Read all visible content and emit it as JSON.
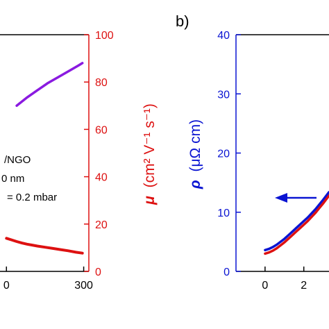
{
  "panels": {
    "left": {
      "annotation_lines": [
        "/NGO",
        "0 nm",
        "= 0.2 mbar"
      ]
    },
    "right": {
      "panel_letter": "b)",
      "arrow_direction": "left"
    }
  },
  "colors": {
    "mobility": "#dd1111",
    "purple": "#8a1ae0",
    "blue": "#0a14d2",
    "red": "#dd1111",
    "axis": "#000000"
  },
  "chart_data": [
    {
      "type": "line",
      "panel": "a",
      "title": "",
      "xlabel": "",
      "x_tick_labels": [
        "0",
        "300"
      ],
      "xlim": [
        -25,
        320
      ],
      "left_axis": {
        "ticks_visible": false
      },
      "right_axis": {
        "label_symbol": "μ",
        "label_units": "(cm² V⁻¹ s⁻¹)",
        "ylim": [
          0,
          100
        ],
        "ticks": [
          0,
          20,
          40,
          60,
          80,
          100
        ],
        "tick_labels": [
          "0",
          "20",
          "40",
          "60",
          "80",
          "100"
        ],
        "color": "#dd1111"
      },
      "series": [
        {
          "color": "#8a1ae0",
          "axis": "left (scale not visible)",
          "x": [
            40,
            80,
            120,
            160,
            200,
            240,
            280,
            295
          ],
          "y_fraction_of_plot": [
            0.7,
            0.735,
            0.765,
            0.795,
            0.82,
            0.845,
            0.87,
            0.88
          ]
        },
        {
          "color": "#dd1111",
          "axis": "right",
          "x": [
            0,
            20,
            40,
            60,
            80,
            100,
            120,
            150,
            180,
            210,
            240,
            270,
            295
          ],
          "y": [
            14.0,
            13.3,
            12.6,
            12.0,
            11.5,
            11.1,
            10.7,
            10.2,
            9.7,
            9.2,
            8.7,
            8.1,
            7.7
          ]
        }
      ],
      "grid": false
    },
    {
      "type": "line",
      "panel": "b",
      "title": "",
      "ylabel_symbol": "ρ",
      "ylabel_units": "(μΩ cm)",
      "ylim": [
        0,
        40
      ],
      "y_ticks": [
        0,
        10,
        20,
        30,
        40
      ],
      "y_tick_labels": [
        "0",
        "10",
        "20",
        "30",
        "40"
      ],
      "y_tick_label_color": "#0a14d2",
      "xlim": [
        -1.5,
        3.3
      ],
      "x_ticks": [
        0,
        2
      ],
      "x_tick_labels": [
        "0",
        "2"
      ],
      "series": [
        {
          "color": "#0a14d2",
          "x": [
            0,
            0.2,
            0.4,
            0.6,
            0.8,
            1.0,
            1.2,
            1.4,
            1.6,
            1.8,
            2.0,
            2.2,
            2.4,
            2.6,
            2.8,
            3.0,
            3.3
          ],
          "y": [
            3.6,
            3.8,
            4.1,
            4.5,
            5.0,
            5.5,
            6.1,
            6.7,
            7.3,
            7.9,
            8.5,
            9.1,
            9.8,
            10.5,
            11.3,
            12.1,
            13.4
          ]
        },
        {
          "color": "#dd1111",
          "x": [
            0,
            0.2,
            0.4,
            0.6,
            0.8,
            1.0,
            1.2,
            1.4,
            1.6,
            1.8,
            2.0,
            2.2,
            2.4,
            2.6,
            2.8,
            3.0,
            3.3
          ],
          "y": [
            3.0,
            3.2,
            3.5,
            3.9,
            4.4,
            4.9,
            5.5,
            6.1,
            6.7,
            7.3,
            7.9,
            8.5,
            9.2,
            9.9,
            10.7,
            11.5,
            12.8
          ]
        }
      ],
      "grid": false,
      "legend": "none"
    }
  ]
}
